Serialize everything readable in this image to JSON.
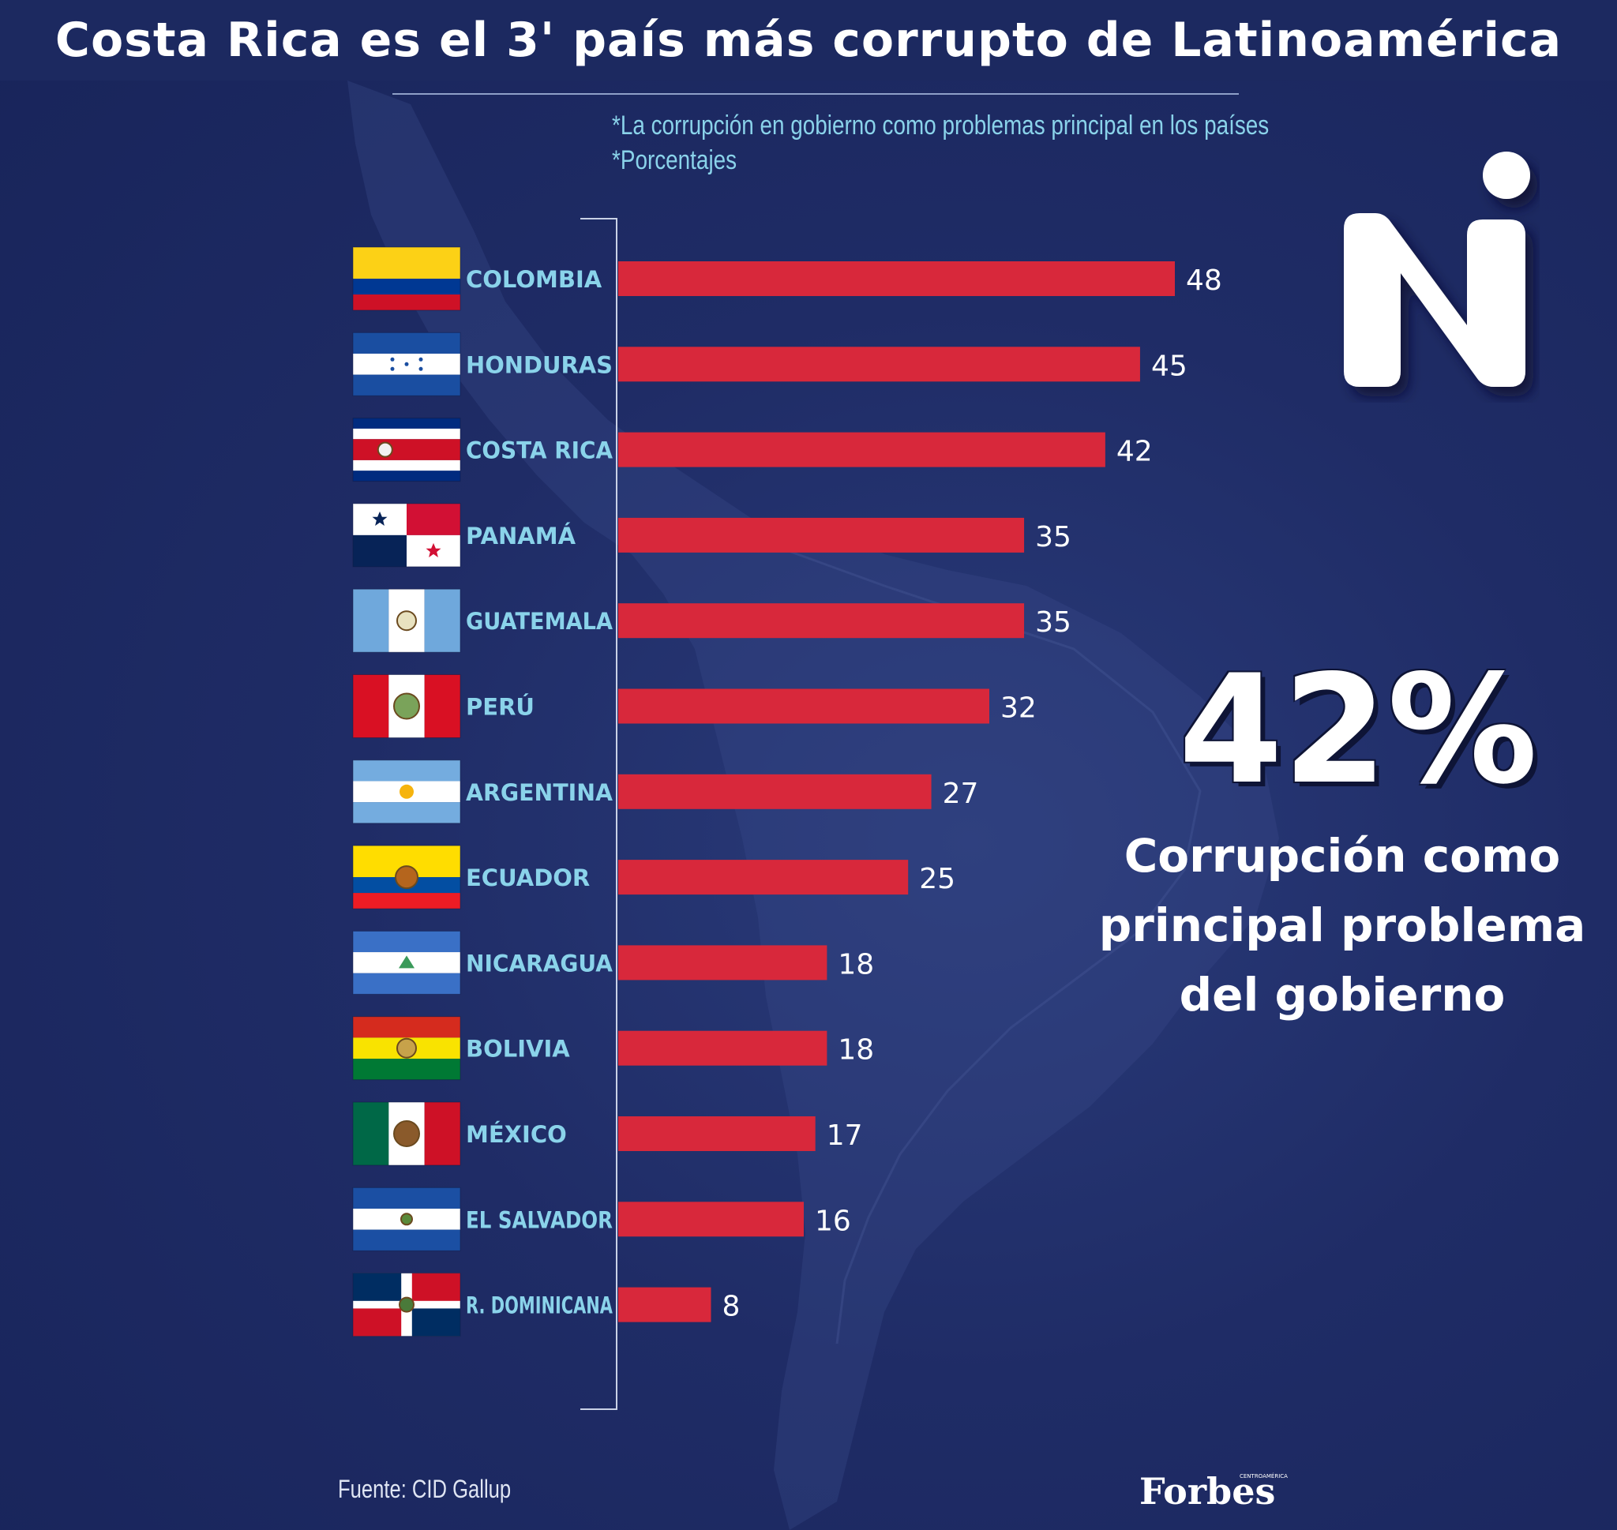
{
  "header": {
    "title": "Costa Rica es el 3' país más corrupto de Latinoamérica"
  },
  "notes": [
    "*La corrupción en gobierno como problemas principal en los países",
    "*Porcentajes"
  ],
  "chart_data": {
    "type": "bar",
    "orientation": "horizontal",
    "categories": [
      "COLOMBIA",
      "HONDURAS",
      "COSTA RICA",
      "PANAMÁ",
      "GUATEMALA",
      "PERÚ",
      "ARGENTINA",
      "ECUADOR",
      "NICARAGUA",
      "BOLIVIA",
      "MÉXICO",
      "EL SALVADOR",
      "R. DOMINICANA"
    ],
    "values": [
      48,
      45,
      42,
      35,
      35,
      32,
      27,
      25,
      18,
      18,
      17,
      16,
      8
    ],
    "xlim": [
      0,
      50
    ],
    "bar_color": "#d8283b",
    "label_color": "#8ad3ea",
    "grid": false,
    "data_labels": true
  },
  "highlight": {
    "value": "42%",
    "text_lines": [
      "Corrupción como",
      "principal problema",
      "del gobierno"
    ]
  },
  "logo": {
    "name": "ni-logo"
  },
  "footer": {
    "source": "Fuente: CID Gallup",
    "brand": "Forbes",
    "brand_sub": "CENTROAMÉRICA"
  },
  "colors": {
    "background": "#1f2c66",
    "bar": "#d8283b",
    "country_label": "#8ad3ea",
    "note_text": "#8ad3ea"
  }
}
